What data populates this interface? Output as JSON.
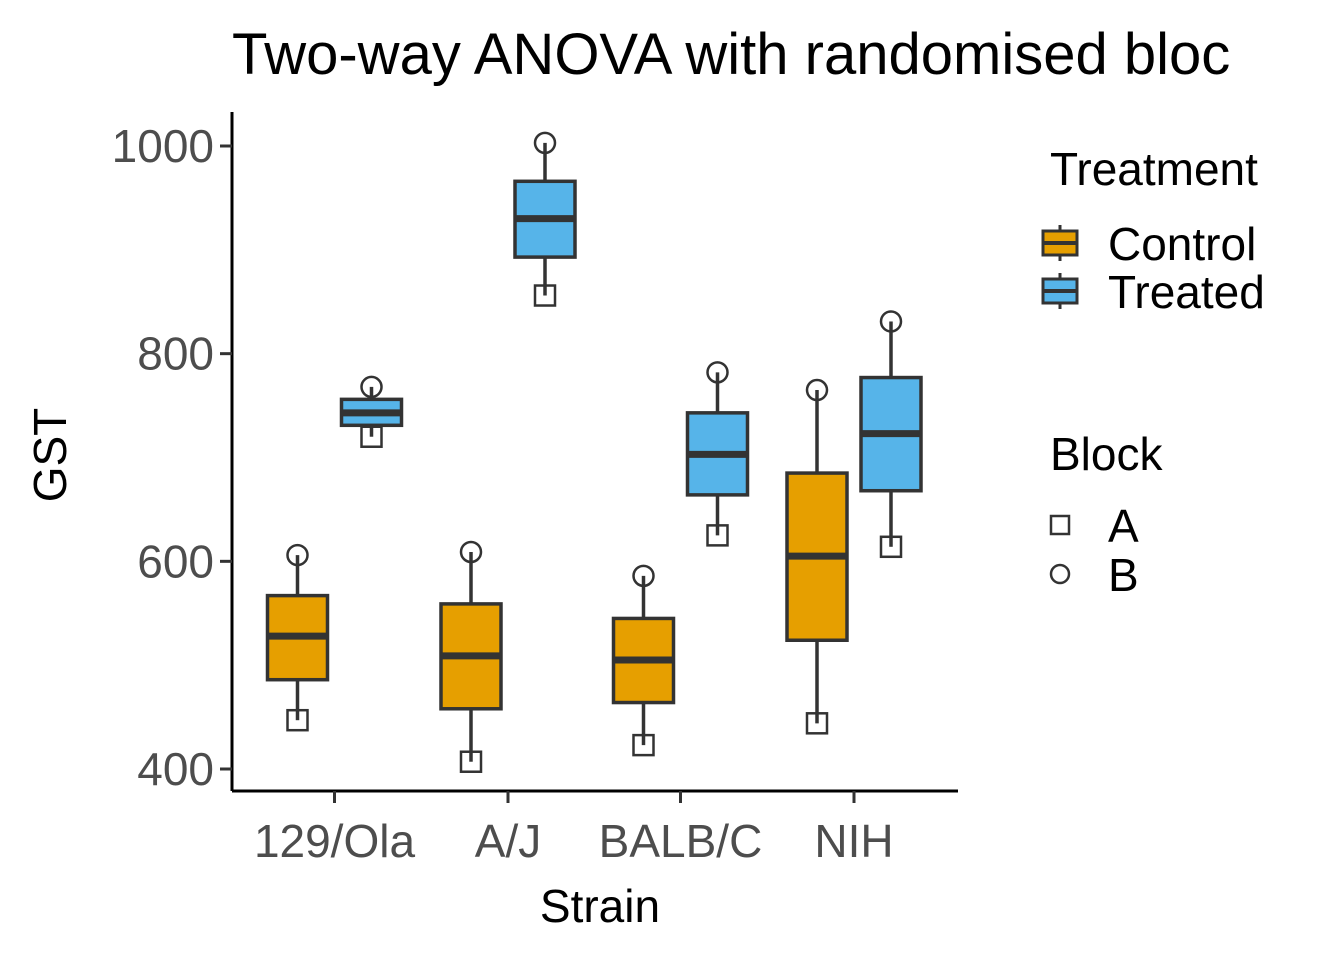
{
  "chart_data": {
    "type": "box",
    "title": "Two-way ANOVA with randomised bloc",
    "xlabel": "Strain",
    "ylabel": "GST",
    "categories": [
      "129/Ola",
      "A/J",
      "BALB/C",
      "NIH"
    ],
    "ylim": [
      380,
      1030
    ],
    "yticks": [
      400,
      600,
      800,
      1000
    ],
    "grid": false,
    "legend_position": "right",
    "colors": {
      "Control": "#E69F00",
      "Treated": "#56B4E9",
      "outline": "#333333"
    },
    "series": [
      {
        "name": "Control",
        "boxes": [
          {
            "category": "129/Ola",
            "min": 447,
            "q1": 486,
            "median": 528,
            "q3": 567,
            "max": 606
          },
          {
            "category": "A/J",
            "min": 407,
            "q1": 458,
            "median": 509,
            "q3": 559,
            "max": 609
          },
          {
            "category": "BALB/C",
            "min": 423,
            "q1": 464,
            "median": 505,
            "q3": 545,
            "max": 586
          },
          {
            "category": "NIH",
            "min": 444,
            "q1": 524,
            "median": 605,
            "q3": 685,
            "max": 765
          }
        ]
      },
      {
        "name": "Treated",
        "boxes": [
          {
            "category": "129/Ola",
            "min": 720,
            "q1": 731,
            "median": 743,
            "q3": 756,
            "max": 768
          },
          {
            "category": "A/J",
            "min": 856,
            "q1": 893,
            "median": 930,
            "q3": 966,
            "max": 1003
          },
          {
            "category": "BALB/C",
            "min": 625,
            "q1": 664,
            "median": 703,
            "q3": 743,
            "max": 782
          },
          {
            "category": "NIH",
            "min": 614,
            "q1": 668,
            "median": 723,
            "q3": 777,
            "max": 831
          }
        ]
      }
    ],
    "points": [
      {
        "strain": "129/Ola",
        "treatment": "Control",
        "block": "A",
        "value": 447
      },
      {
        "strain": "129/Ola",
        "treatment": "Control",
        "block": "B",
        "value": 606
      },
      {
        "strain": "129/Ola",
        "treatment": "Treated",
        "block": "A",
        "value": 720
      },
      {
        "strain": "129/Ola",
        "treatment": "Treated",
        "block": "B",
        "value": 768
      },
      {
        "strain": "A/J",
        "treatment": "Control",
        "block": "A",
        "value": 407
      },
      {
        "strain": "A/J",
        "treatment": "Control",
        "block": "B",
        "value": 609
      },
      {
        "strain": "A/J",
        "treatment": "Treated",
        "block": "A",
        "value": 856
      },
      {
        "strain": "A/J",
        "treatment": "Treated",
        "block": "B",
        "value": 1003
      },
      {
        "strain": "BALB/C",
        "treatment": "Control",
        "block": "A",
        "value": 423
      },
      {
        "strain": "BALB/C",
        "treatment": "Control",
        "block": "B",
        "value": 586
      },
      {
        "strain": "BALB/C",
        "treatment": "Treated",
        "block": "A",
        "value": 625
      },
      {
        "strain": "BALB/C",
        "treatment": "Treated",
        "block": "B",
        "value": 782
      },
      {
        "strain": "NIH",
        "treatment": "Control",
        "block": "A",
        "value": 444
      },
      {
        "strain": "NIH",
        "treatment": "Control",
        "block": "B",
        "value": 765
      },
      {
        "strain": "NIH",
        "treatment": "Treated",
        "block": "A",
        "value": 614
      },
      {
        "strain": "NIH",
        "treatment": "Treated",
        "block": "B",
        "value": 831
      }
    ],
    "legends": {
      "treatment": {
        "title": "Treatment",
        "items": [
          "Control",
          "Treated"
        ]
      },
      "block": {
        "title": "Block",
        "items": [
          {
            "label": "A",
            "shape": "square"
          },
          {
            "label": "B",
            "shape": "circle"
          }
        ]
      }
    }
  }
}
